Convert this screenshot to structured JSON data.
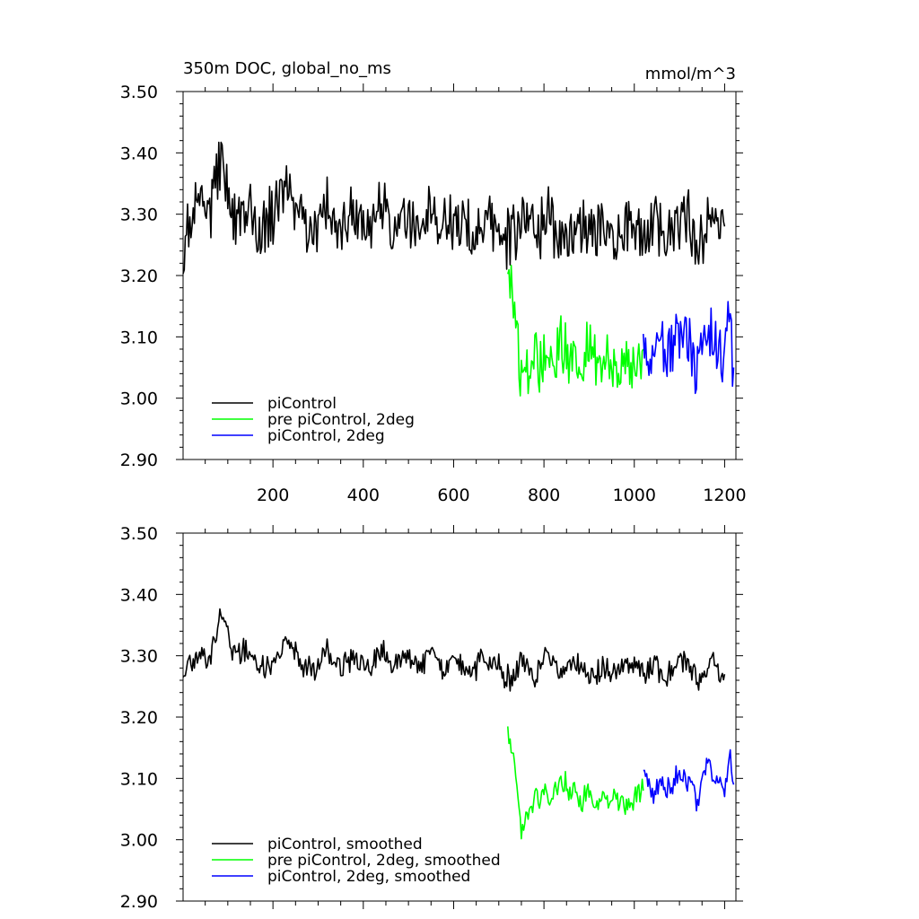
{
  "chart_data": [
    {
      "type": "line",
      "title": "350m DOC, global_no_ms",
      "units": "mmol/m^3",
      "xlim": [
        1,
        1225
      ],
      "ylim": [
        2.9,
        3.5
      ],
      "x_ticks": [
        200,
        400,
        600,
        800,
        1000,
        1200
      ],
      "x_tick_labels": [
        "200",
        "400",
        "600",
        "800",
        "1000",
        "1200"
      ],
      "y_ticks": [
        2.9,
        3.0,
        3.1,
        3.2,
        3.3,
        3.4,
        3.5
      ],
      "y_tick_labels": [
        "2.90",
        "3.00",
        "3.10",
        "3.20",
        "3.30",
        "3.40",
        "3.50"
      ],
      "grid": false,
      "legend_position": "bottom-left",
      "series": [
        {
          "name": "piControl",
          "color": "#000000",
          "x": [
            1,
            30,
            60,
            85,
            110,
            140,
            170,
            200,
            235,
            260,
            290,
            320,
            350,
            380,
            410,
            440,
            470,
            495,
            520,
            550,
            580,
            610,
            640,
            670,
            700,
            725,
            750,
            780,
            810,
            840,
            870,
            900,
            930,
            960,
            990,
            1020,
            1050,
            1080,
            1110,
            1140,
            1170,
            1200
          ],
          "values": [
            3.24,
            3.33,
            3.3,
            3.38,
            3.28,
            3.32,
            3.27,
            3.3,
            3.35,
            3.29,
            3.26,
            3.31,
            3.27,
            3.3,
            3.28,
            3.32,
            3.29,
            3.31,
            3.27,
            3.3,
            3.28,
            3.29,
            3.27,
            3.3,
            3.28,
            3.25,
            3.29,
            3.27,
            3.3,
            3.26,
            3.29,
            3.27,
            3.28,
            3.26,
            3.29,
            3.27,
            3.28,
            3.26,
            3.3,
            3.25,
            3.29,
            3.28
          ]
        },
        {
          "name": "pre piControl, 2deg",
          "color": "#00ff00",
          "x": [
            720,
            730,
            740,
            750,
            760,
            770,
            780,
            790,
            800,
            820,
            840,
            860,
            880,
            900,
            920,
            940,
            960,
            980,
            1000,
            1020
          ],
          "values": [
            3.22,
            3.17,
            3.1,
            3.02,
            3.06,
            3.03,
            3.09,
            3.05,
            3.08,
            3.06,
            3.09,
            3.07,
            3.06,
            3.08,
            3.05,
            3.07,
            3.06,
            3.04,
            3.07,
            3.08
          ]
        },
        {
          "name": "piControl, 2deg",
          "color": "#0000ff",
          "x": [
            1020,
            1040,
            1060,
            1080,
            1100,
            1120,
            1140,
            1160,
            1180,
            1200,
            1210,
            1220
          ],
          "values": [
            3.08,
            3.06,
            3.09,
            3.07,
            3.1,
            3.08,
            3.05,
            3.11,
            3.09,
            3.07,
            3.14,
            3.05
          ]
        }
      ]
    },
    {
      "type": "line",
      "title": "",
      "xlim": [
        1,
        1225
      ],
      "ylim": [
        2.9,
        3.5
      ],
      "x_ticks": [
        200,
        400,
        600,
        800,
        1000,
        1200
      ],
      "y_ticks": [
        2.9,
        3.0,
        3.1,
        3.2,
        3.3,
        3.4,
        3.5
      ],
      "y_tick_labels": [
        "2.90",
        "3.00",
        "3.10",
        "3.20",
        "3.30",
        "3.40",
        "3.50"
      ],
      "grid": false,
      "legend_position": "bottom-left",
      "series": [
        {
          "name": "piControl, smoothed",
          "color": "#000000",
          "x": [
            1,
            30,
            60,
            85,
            110,
            140,
            170,
            200,
            235,
            260,
            290,
            320,
            350,
            380,
            410,
            440,
            470,
            495,
            520,
            550,
            580,
            610,
            640,
            670,
            700,
            725,
            750,
            780,
            810,
            840,
            870,
            900,
            930,
            960,
            990,
            1020,
            1050,
            1080,
            1110,
            1140,
            1170,
            1200
          ],
          "values": [
            3.26,
            3.3,
            3.29,
            3.37,
            3.3,
            3.31,
            3.28,
            3.29,
            3.33,
            3.29,
            3.27,
            3.31,
            3.28,
            3.3,
            3.28,
            3.31,
            3.29,
            3.3,
            3.28,
            3.3,
            3.28,
            3.29,
            3.27,
            3.3,
            3.28,
            3.26,
            3.29,
            3.27,
            3.3,
            3.27,
            3.29,
            3.27,
            3.28,
            3.27,
            3.29,
            3.27,
            3.28,
            3.27,
            3.29,
            3.26,
            3.29,
            3.27
          ]
        },
        {
          "name": "pre piControl, 2deg, smoothed",
          "color": "#00ff00",
          "x": [
            720,
            730,
            740,
            750,
            760,
            770,
            780,
            790,
            800,
            820,
            840,
            860,
            880,
            900,
            920,
            940,
            960,
            980,
            1000,
            1020
          ],
          "values": [
            3.18,
            3.15,
            3.1,
            3.0,
            3.05,
            3.04,
            3.09,
            3.06,
            3.08,
            3.07,
            3.1,
            3.08,
            3.06,
            3.08,
            3.06,
            3.07,
            3.07,
            3.05,
            3.07,
            3.08
          ]
        },
        {
          "name": "piControl, 2deg, smoothed",
          "color": "#0000ff",
          "x": [
            1020,
            1040,
            1060,
            1080,
            1100,
            1120,
            1140,
            1160,
            1180,
            1200,
            1210,
            1220
          ],
          "values": [
            3.1,
            3.08,
            3.09,
            3.08,
            3.11,
            3.09,
            3.06,
            3.12,
            3.1,
            3.08,
            3.14,
            3.09
          ]
        }
      ]
    }
  ]
}
